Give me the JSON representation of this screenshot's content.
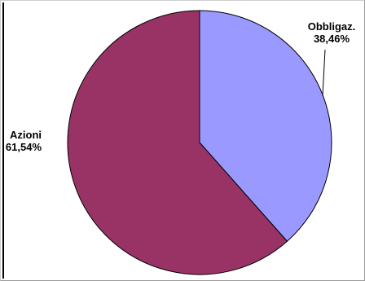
{
  "chart_data": {
    "type": "pie",
    "categories": [
      "Obbligaz.",
      "Azioni"
    ],
    "values": [
      38.46,
      61.54
    ],
    "value_labels": [
      "38,46%",
      "61,54%"
    ],
    "colors": [
      "#9999ff",
      "#993366"
    ],
    "start_angle": "12 o'clock",
    "direction": "clockwise",
    "legend": "none"
  }
}
